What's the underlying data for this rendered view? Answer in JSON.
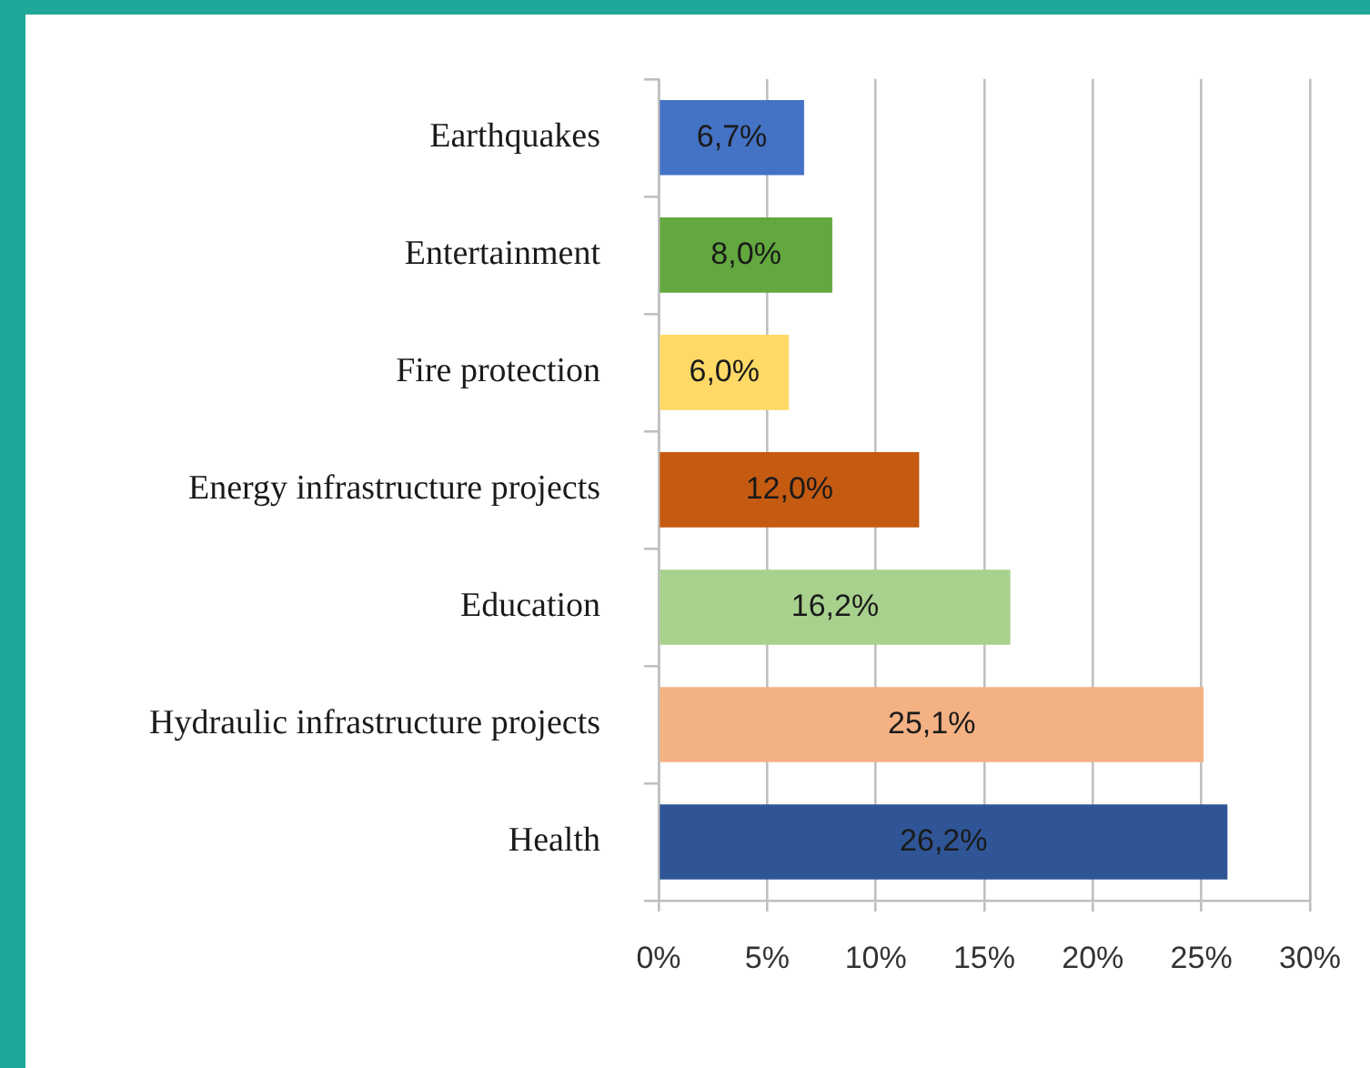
{
  "chart_data": {
    "type": "bar",
    "orientation": "horizontal",
    "categories": [
      "Earthquakes",
      "Entertainment",
      "Fire protection",
      "Energy infrastructure projects",
      "Education",
      "Hydraulic infrastructure projects",
      "Health"
    ],
    "values": [
      6.7,
      8.0,
      6.0,
      12.0,
      16.2,
      25.1,
      26.2
    ],
    "colors": [
      "#4472c4",
      "#62a83e",
      "#ffd966",
      "#c55a11",
      "#a9d18e",
      "#f4b183",
      "#2f5597"
    ],
    "value_labels": [
      "6,7%",
      "8,0%",
      "6,0%",
      "12,0%",
      "16,2%",
      "25,1%",
      "26,2%"
    ],
    "xlim": [
      0,
      30
    ],
    "xticks": [
      {
        "value": 0,
        "label": "0%"
      },
      {
        "value": 5,
        "label": "5%"
      },
      {
        "value": 10,
        "label": "10%"
      },
      {
        "value": 15,
        "label": "15%"
      },
      {
        "value": 20,
        "label": "20%"
      },
      {
        "value": 25,
        "label": "25%"
      },
      {
        "value": 30,
        "label": "30%"
      }
    ],
    "grid": "x"
  }
}
